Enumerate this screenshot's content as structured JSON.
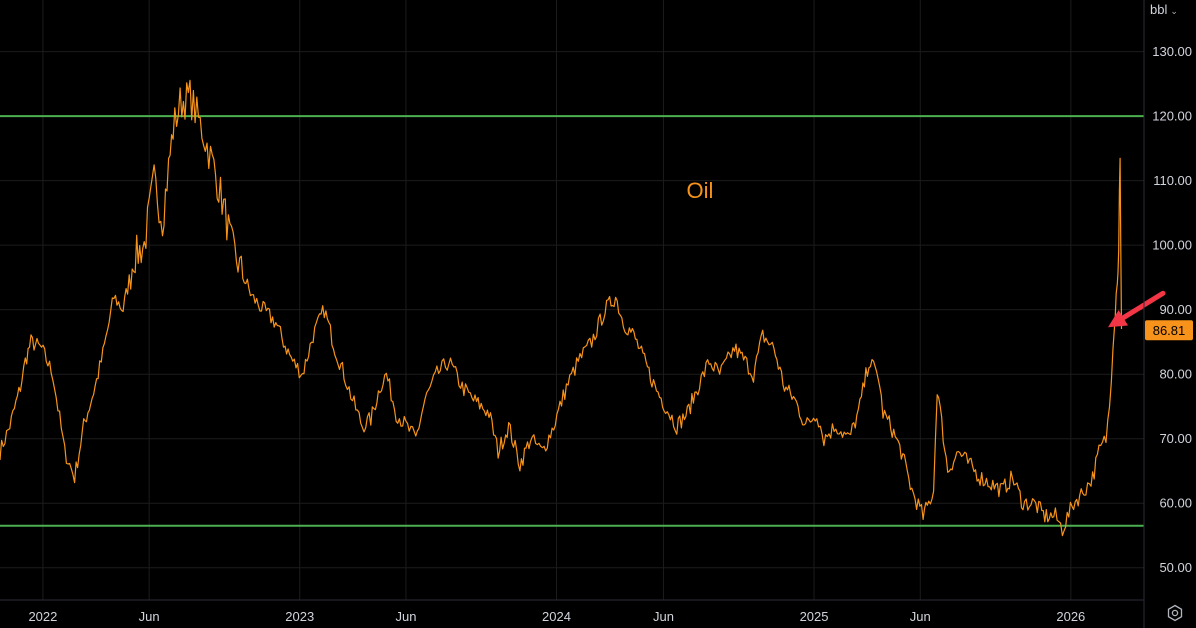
{
  "unit_selector": {
    "label": "bbl",
    "chevron": "chevron-down-icon"
  },
  "settings": {
    "icon": "settings-icon"
  },
  "chart_data": {
    "type": "line",
    "title": "Oil",
    "series": [
      {
        "color": "#f7931a",
        "x": [
          "2021-11-01",
          "2021-11-15",
          "2021-11-30",
          "2021-12-07",
          "2021-12-15",
          "2021-12-30",
          "2022-01-15",
          "2022-02-01",
          "2022-02-15",
          "2022-02-28",
          "2022-03-08",
          "2022-03-16",
          "2022-03-25",
          "2022-04-05",
          "2022-04-12",
          "2022-04-25",
          "2022-05-10",
          "2022-05-25",
          "2022-06-08",
          "2022-06-20",
          "2022-07-05",
          "2022-07-15",
          "2022-07-29",
          "2022-08-15",
          "2022-09-01",
          "2022-09-15",
          "2022-09-26",
          "2022-10-10",
          "2022-10-25",
          "2022-11-10",
          "2022-11-28",
          "2022-12-09",
          "2022-12-22",
          "2023-01-05",
          "2023-01-20",
          "2023-02-05",
          "2023-02-20",
          "2023-03-05",
          "2023-03-17",
          "2023-03-31",
          "2023-04-12",
          "2023-04-25",
          "2023-05-04",
          "2023-05-18",
          "2023-06-01",
          "2023-06-15",
          "2023-06-28",
          "2023-07-15",
          "2023-08-01",
          "2023-08-20",
          "2023-09-05",
          "2023-09-27",
          "2023-10-10",
          "2023-10-25",
          "2023-11-10",
          "2023-11-25",
          "2023-12-12",
          "2023-12-28",
          "2024-01-15",
          "2024-02-01",
          "2024-02-20",
          "2024-03-10",
          "2024-03-25",
          "2024-04-05",
          "2024-04-20",
          "2024-05-05",
          "2024-05-20",
          "2024-06-04",
          "2024-06-20",
          "2024-07-05",
          "2024-07-20",
          "2024-08-05",
          "2024-08-20",
          "2024-09-10",
          "2024-09-25",
          "2024-10-07",
          "2024-10-20",
          "2024-11-05",
          "2024-11-20",
          "2024-12-05",
          "2024-12-20",
          "2025-01-05",
          "2025-01-15",
          "2025-02-01",
          "2025-02-20",
          "2025-03-05",
          "2025-03-20",
          "2025-04-02",
          "2025-04-09",
          "2025-04-20",
          "2025-05-05",
          "2025-05-20",
          "2025-06-05",
          "2025-06-13",
          "2025-06-20",
          "2025-06-25",
          "2025-07-10",
          "2025-07-25",
          "2025-08-10",
          "2025-08-25",
          "2025-09-10",
          "2025-09-25",
          "2025-10-10",
          "2025-10-25",
          "2025-11-10",
          "2025-11-25",
          "2025-12-10",
          "2025-12-20",
          "2026-01-05",
          "2026-01-20",
          "2026-02-01",
          "2026-02-10",
          "2026-02-20",
          "2026-02-25",
          "2026-03-02",
          "2026-03-05",
          "2026-03-08",
          "2026-03-10",
          "2026-03-12",
          "2026-03-14"
        ],
        "values": [
          68,
          72,
          78,
          82,
          85,
          84,
          80,
          68,
          64,
          72,
          75,
          78,
          82,
          88,
          92,
          90,
          98,
          100,
          110,
          104,
          118,
          122,
          123,
          118,
          112,
          106,
          100,
          96,
          92,
          90,
          88,
          85,
          82,
          80,
          86,
          90,
          84,
          80,
          76,
          72,
          73,
          78,
          80,
          74,
          72,
          70,
          76,
          80,
          82,
          78,
          76,
          74,
          68,
          72,
          66,
          70,
          68,
          72,
          78,
          82,
          85,
          90,
          92,
          88,
          86,
          82,
          78,
          75,
          72,
          74,
          78,
          82,
          80,
          84,
          82,
          80,
          86,
          84,
          78,
          76,
          72,
          74,
          70,
          72,
          70,
          74,
          82,
          80,
          74,
          72,
          68,
          62,
          58,
          60,
          62,
          78,
          65,
          68,
          66,
          64,
          63,
          62,
          64,
          60,
          60,
          58,
          58,
          56,
          60,
          62,
          64,
          68,
          70,
          75,
          85,
          90,
          95,
          100,
          115,
          87
        ],
        "last_value": "86.81"
      }
    ],
    "x_ticks": [
      {
        "date": "2022-01-01",
        "label": "2022"
      },
      {
        "date": "2022-06-01",
        "label": "Jun"
      },
      {
        "date": "2023-01-01",
        "label": "2023"
      },
      {
        "date": "2023-06-01",
        "label": "Jun"
      },
      {
        "date": "2024-01-01",
        "label": "2024"
      },
      {
        "date": "2024-06-01",
        "label": "Jun"
      },
      {
        "date": "2025-01-01",
        "label": "2025"
      },
      {
        "date": "2025-06-01",
        "label": "Jun"
      },
      {
        "date": "2026-01-01",
        "label": "2026"
      }
    ],
    "y_ticks": [
      "50.00",
      "60.00",
      "70.00",
      "80.00",
      "90.00",
      "100.00",
      "110.00",
      "120.00",
      "130.00"
    ],
    "ylim": [
      45,
      138
    ],
    "xlim": [
      "2021-11-01",
      "2026-04-15"
    ],
    "horizontal_lines": [
      {
        "value": 120,
        "color": "#4caf50"
      },
      {
        "value": 56.5,
        "color": "#4caf50"
      }
    ],
    "annotation_arrow": {
      "target_value": 86.81,
      "color": "#f23645"
    },
    "price_label_color": "#f7931a",
    "grid": true,
    "background": "#000000",
    "gridline_color": "#1c1c1c",
    "axis_text_color": "#d1d4dc"
  }
}
